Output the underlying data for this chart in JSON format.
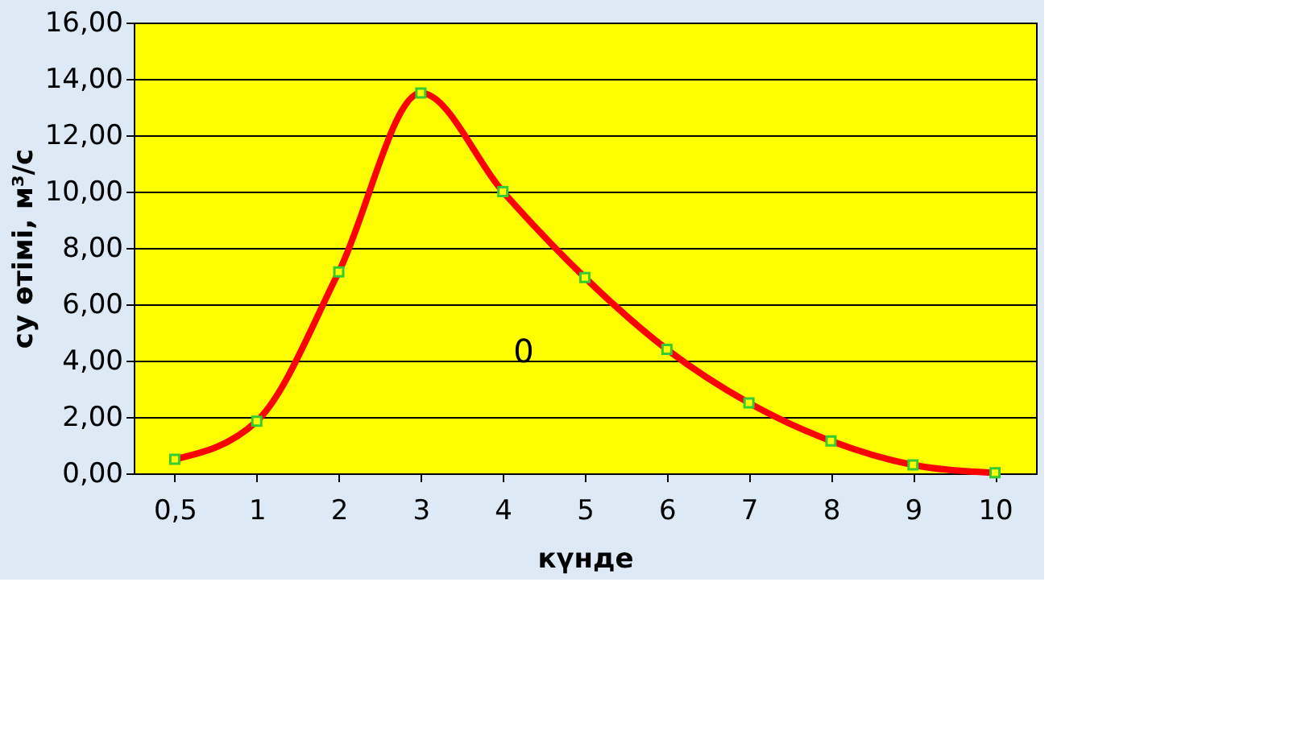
{
  "chart_data": {
    "type": "line",
    "xlabel": "күнде",
    "ylabel": "су өтімі, м³/с",
    "categories": [
      "0,5",
      "1",
      "2",
      "3",
      "4",
      "5",
      "6",
      "7",
      "8",
      "9",
      "10"
    ],
    "series": [
      {
        "color": "#ff0000",
        "values": [
          0.5,
          1.85,
          7.15,
          13.5,
          10.0,
          6.95,
          4.4,
          2.5,
          1.15,
          0.3,
          0.02
        ]
      }
    ],
    "ylim": [
      0,
      16
    ],
    "yticks": [
      {
        "value": 0,
        "label": "0,00"
      },
      {
        "value": 2,
        "label": "2,00"
      },
      {
        "value": 4,
        "label": "4,00"
      },
      {
        "value": 6,
        "label": "6,00"
      },
      {
        "value": 8,
        "label": "8,00"
      },
      {
        "value": 10,
        "label": "10,00"
      },
      {
        "value": 12,
        "label": "12,00"
      },
      {
        "value": 14,
        "label": "14,00"
      },
      {
        "value": 16,
        "label": "16,00"
      }
    ],
    "grid": "y",
    "marker": "square",
    "line_style": "solid",
    "annotations": [
      "0"
    ]
  }
}
